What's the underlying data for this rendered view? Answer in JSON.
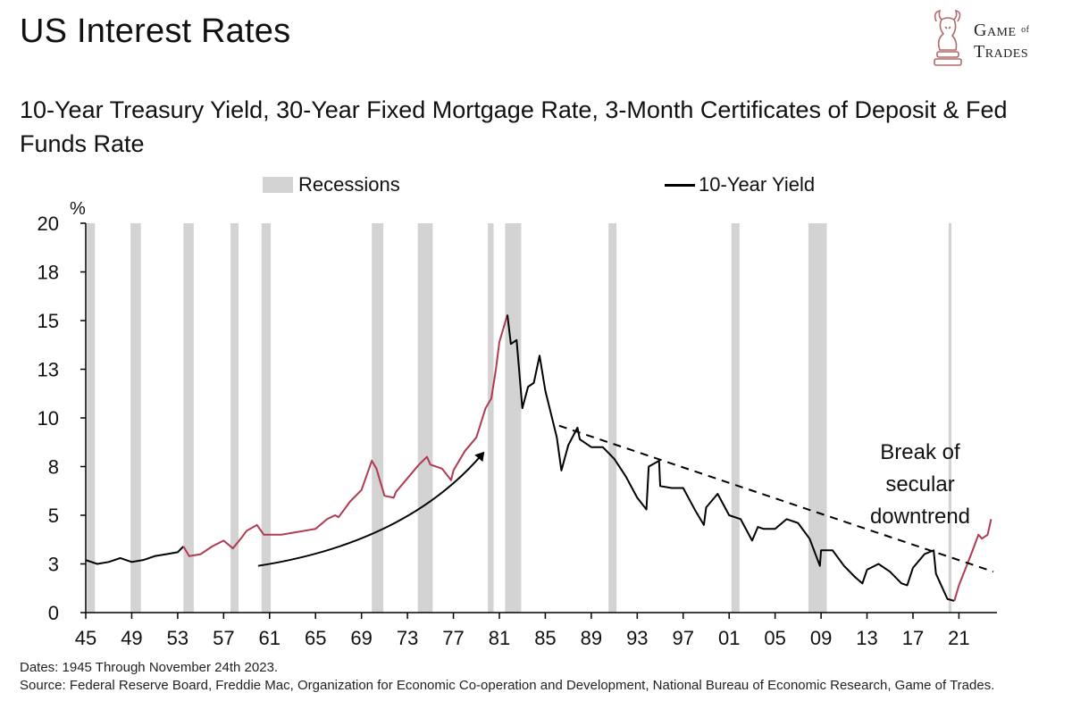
{
  "header": {
    "title": "US Interest Rates",
    "subtitle": "10-Year Treasury Yield, 30-Year Fixed Mortgage Rate, 3-Month Certificates of Deposit & Fed Funds Rate"
  },
  "logo": {
    "line1": "Game",
    "of": "of",
    "line2": "Trades"
  },
  "legend": {
    "recessions": "Recessions",
    "yield": "10-Year Yield"
  },
  "footnote": {
    "dates": "Dates: 1945 Through November 24th 2023.",
    "source": "Source: Federal Reserve Board, Freddie Mac, Organization for Economic Co-operation and Development, National Bureau of Economic Research, Game of Trades."
  },
  "colors": {
    "line": "#000000",
    "highlight": "#b03a52",
    "recession": "#d3d3d3"
  },
  "chart_data": {
    "type": "line",
    "ylabel": "%",
    "xlim": [
      1945,
      2024
    ],
    "ylim": [
      0,
      20
    ],
    "y_ticks": [
      "0",
      "3",
      "5",
      "8",
      "10",
      "13",
      "15",
      "18",
      "20"
    ],
    "x_ticks": [
      "45",
      "49",
      "53",
      "57",
      "61",
      "65",
      "69",
      "73",
      "77",
      "81",
      "85",
      "89",
      "93",
      "97",
      "01",
      "05",
      "09",
      "13",
      "17",
      "21"
    ],
    "recessions": [
      [
        1945.1,
        1945.8
      ],
      [
        1948.9,
        1949.8
      ],
      [
        1953.5,
        1954.4
      ],
      [
        1957.6,
        1958.3
      ],
      [
        1960.3,
        1961.1
      ],
      [
        1969.9,
        1970.9
      ],
      [
        1973.9,
        1975.2
      ],
      [
        1980.0,
        1980.5
      ],
      [
        1981.5,
        1982.9
      ],
      [
        1990.5,
        1991.2
      ],
      [
        2001.2,
        2001.9
      ],
      [
        2007.9,
        2009.5
      ],
      [
        2020.1,
        2020.35
      ]
    ],
    "series": [
      {
        "name": "10-Year Yield",
        "x": [
          1945,
          1946,
          1947,
          1948,
          1949,
          1950,
          1951,
          1952,
          1953,
          1953.5,
          1954,
          1955,
          1956,
          1957,
          1957.8,
          1958.5,
          1959,
          1959.9,
          1960.5,
          1961,
          1962,
          1963,
          1964,
          1965,
          1966,
          1966.7,
          1967,
          1968,
          1969,
          1969.9,
          1970.3,
          1971,
          1971.8,
          1972,
          1973,
          1974,
          1974.7,
          1975,
          1976,
          1976.8,
          1977,
          1978,
          1979,
          1979.8,
          1980.3,
          1980.7,
          1981,
          1981.7,
          1982,
          1982.5,
          1983,
          1983.5,
          1984,
          1984.5,
          1985,
          1986,
          1986.4,
          1987,
          1987.8,
          1988,
          1989,
          1990,
          1991,
          1992,
          1993,
          1993.8,
          1994,
          1994.9,
          1995,
          1996,
          1997,
          1998,
          1998.8,
          1999,
          2000,
          2001,
          2002,
          2003,
          2003.5,
          2004,
          2005,
          2006,
          2007,
          2008,
          2008.9,
          2009,
          2010,
          2011,
          2012,
          2012.6,
          2013,
          2014,
          2015,
          2016,
          2016.5,
          2017,
          2018,
          2018.8,
          2019,
          2020,
          2020.6,
          2021,
          2022,
          2022.7,
          2023,
          2023.5,
          2023.8
        ],
        "y": [
          2.7,
          2.5,
          2.6,
          2.8,
          2.6,
          2.7,
          2.9,
          3.0,
          3.1,
          3.4,
          2.9,
          3.0,
          3.4,
          3.7,
          3.3,
          3.8,
          4.2,
          4.5,
          4.0,
          4.0,
          4.0,
          4.1,
          4.2,
          4.3,
          4.8,
          5.0,
          4.9,
          5.7,
          6.3,
          7.8,
          7.4,
          6.0,
          5.9,
          6.2,
          6.9,
          7.6,
          8.0,
          7.6,
          7.4,
          6.8,
          7.3,
          8.3,
          9.0,
          10.5,
          11.0,
          12.5,
          13.9,
          15.3,
          13.8,
          14.0,
          10.5,
          11.6,
          11.8,
          13.2,
          11.4,
          9.0,
          7.3,
          8.6,
          9.5,
          8.9,
          8.5,
          8.5,
          7.9,
          7.0,
          5.9,
          5.3,
          7.5,
          7.8,
          6.5,
          6.4,
          6.4,
          5.3,
          4.5,
          5.4,
          6.1,
          5.0,
          4.8,
          3.7,
          4.4,
          4.3,
          4.3,
          4.8,
          4.6,
          3.8,
          2.4,
          3.2,
          3.2,
          2.4,
          1.8,
          1.5,
          2.2,
          2.5,
          2.1,
          1.5,
          1.4,
          2.3,
          3.0,
          3.2,
          2.0,
          0.7,
          0.6,
          1.4,
          2.9,
          4.0,
          3.8,
          4.0,
          4.8
        ]
      }
    ],
    "annotations": [
      "Break of",
      "secular",
      "downtrend"
    ]
  }
}
